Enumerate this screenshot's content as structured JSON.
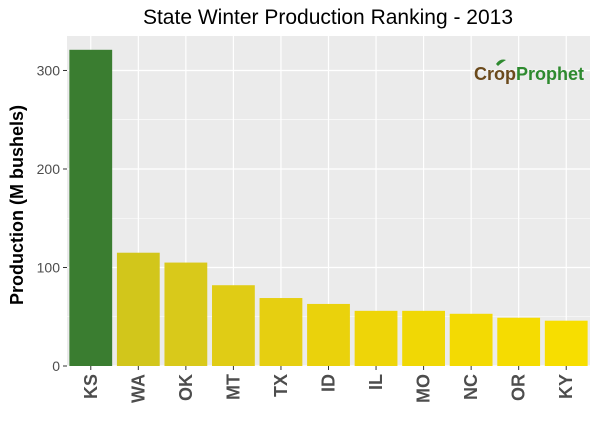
{
  "chart_data": {
    "type": "bar",
    "title": "State Winter  Production Ranking - 2013",
    "xlabel": "",
    "ylabel": "Production (M bushels)",
    "ylim": [
      0,
      335
    ],
    "yticks": [
      0,
      100,
      200,
      300
    ],
    "categories": [
      "KS",
      "WA",
      "OK",
      "MT",
      "TX",
      "ID",
      "IL",
      "MO",
      "NC",
      "OR",
      "KY"
    ],
    "values": [
      321,
      115,
      105,
      82,
      69,
      63,
      56,
      56,
      53,
      49,
      46
    ],
    "bar_colors": [
      "#3a7d30",
      "#d2c61b",
      "#d9c91a",
      "#e0cc15",
      "#e6cf11",
      "#ead20c",
      "#eed508",
      "#f0d805",
      "#f3da03",
      "#f5dc01",
      "#f7de00"
    ],
    "grid": true,
    "legend": "none",
    "panel_background": "#ebebeb",
    "gridline_color": "#ffffff"
  },
  "watermark": {
    "part1": "Crop",
    "part2": "Prophet",
    "color1": "#6b4a1c",
    "color2": "#2e8a2f"
  }
}
